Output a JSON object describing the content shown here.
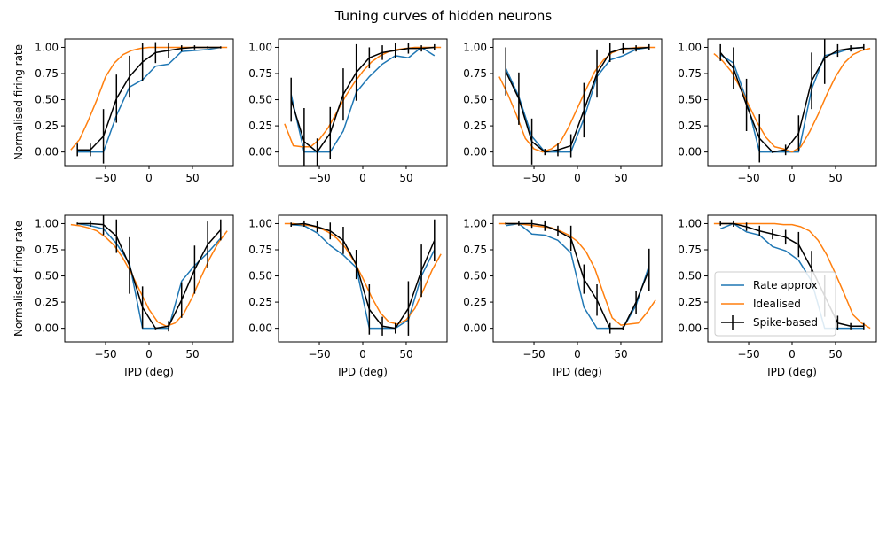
{
  "figure": {
    "title": "Tuning curves of hidden neurons"
  },
  "chart_data": {
    "type": "line",
    "title": "Tuning curves of hidden neurons",
    "xlabel": "IPD (deg)",
    "ylabel": "Normalised firing rate",
    "xlim": [
      -97,
      97
    ],
    "ylim": [
      -0.13,
      1.08
    ],
    "xticks": [
      -50,
      0,
      50
    ],
    "yticks": [
      0.0,
      0.25,
      0.5,
      0.75,
      1.0
    ],
    "xtick_labels": [
      "−50",
      "0",
      "50"
    ],
    "ytick_labels": [
      "0.00",
      "0.25",
      "0.50",
      "0.75",
      "1.00"
    ],
    "grid": false,
    "legend": {
      "placement": "lower-right of last panel",
      "entries": [
        {
          "label": "Rate approx",
          "color": "#1f77b4"
        },
        {
          "label": "Idealised",
          "color": "#ff7f0e"
        },
        {
          "label": "Spike-based",
          "color": "#000000"
        }
      ]
    },
    "series_colors": {
      "rate": "#1f77b4",
      "ideal": "#ff7f0e",
      "spike": "#000000"
    },
    "rate_x": [
      -82.5,
      -67.5,
      -52.5,
      -37.5,
      -22.5,
      -7.5,
      7.5,
      22.5,
      37.5,
      52.5,
      67.5,
      82.5
    ],
    "ideal_x": [
      -90,
      -80,
      -70,
      -60,
      -50,
      -40,
      -30,
      -20,
      -10,
      0,
      10,
      20,
      30,
      40,
      50,
      60,
      70,
      80,
      90
    ],
    "spike_x": [
      -82.5,
      -67.5,
      -52.5,
      -37.5,
      -22.5,
      -7.5,
      7.5,
      22.5,
      37.5,
      52.5,
      67.5,
      82.5
    ],
    "panels": [
      {
        "rate": [
          0.0,
          0.0,
          0.0,
          0.35,
          0.62,
          0.69,
          0.82,
          0.84,
          0.96,
          0.97,
          0.98,
          1.0
        ],
        "ideal": [
          0.02,
          0.12,
          0.3,
          0.5,
          0.72,
          0.85,
          0.93,
          0.97,
          0.99,
          1.0,
          1.0,
          1.0,
          1.0,
          1.0,
          1.0,
          1.0,
          1.0,
          1.0,
          1.0
        ],
        "spike": [
          0.02,
          0.02,
          0.15,
          0.51,
          0.72,
          0.86,
          0.95,
          0.97,
          0.99,
          1.0,
          1.0,
          1.0
        ],
        "spike_err": [
          0.06,
          0.06,
          0.26,
          0.23,
          0.2,
          0.18,
          0.1,
          0.07,
          0.03,
          0.02,
          0.01,
          0.01
        ]
      },
      {
        "rate": [
          0.55,
          0.0,
          0.0,
          0.0,
          0.2,
          0.57,
          0.72,
          0.84,
          0.92,
          0.9,
          1.0,
          0.92
        ],
        "ideal": [
          0.27,
          0.06,
          0.05,
          0.05,
          0.12,
          0.23,
          0.38,
          0.53,
          0.66,
          0.77,
          0.86,
          0.92,
          0.96,
          0.98,
          0.99,
          1.0,
          1.0,
          1.0,
          1.0
        ],
        "spike": [
          0.5,
          0.1,
          0.0,
          0.18,
          0.55,
          0.76,
          0.9,
          0.95,
          0.97,
          0.99,
          0.99,
          1.0
        ],
        "spike_err": [
          0.21,
          0.32,
          0.13,
          0.25,
          0.25,
          0.27,
          0.1,
          0.07,
          0.07,
          0.05,
          0.03,
          0.03
        ]
      },
      {
        "rate": [
          0.8,
          0.53,
          0.15,
          0.0,
          0.0,
          0.0,
          0.32,
          0.72,
          0.88,
          0.92,
          0.98,
          1.0
        ],
        "ideal": [
          0.72,
          0.55,
          0.35,
          0.13,
          0.03,
          0.0,
          0.03,
          0.09,
          0.24,
          0.42,
          0.6,
          0.77,
          0.88,
          0.95,
          0.98,
          0.99,
          1.0,
          1.0,
          1.0
        ],
        "spike": [
          0.77,
          0.51,
          0.1,
          0.0,
          0.02,
          0.06,
          0.4,
          0.75,
          0.95,
          0.99,
          0.99,
          1.0
        ],
        "spike_err": [
          0.23,
          0.25,
          0.22,
          0.03,
          0.06,
          0.11,
          0.26,
          0.23,
          0.09,
          0.05,
          0.03,
          0.03
        ]
      },
      {
        "rate": [
          0.93,
          0.85,
          0.5,
          0.0,
          0.0,
          0.0,
          0.0,
          0.6,
          0.92,
          0.95,
          0.99,
          1.0
        ],
        "ideal": [
          0.94,
          0.87,
          0.77,
          0.62,
          0.45,
          0.28,
          0.14,
          0.05,
          0.03,
          0.0,
          0.05,
          0.19,
          0.36,
          0.55,
          0.72,
          0.85,
          0.93,
          0.97,
          0.99
        ],
        "spike": [
          0.95,
          0.8,
          0.45,
          0.13,
          0.0,
          0.02,
          0.18,
          0.68,
          0.9,
          0.97,
          0.99,
          1.0
        ],
        "spike_err": [
          0.08,
          0.2,
          0.25,
          0.23,
          0.01,
          0.05,
          0.17,
          0.27,
          0.25,
          0.06,
          0.03,
          0.03
        ]
      },
      {
        "rate": [
          1.0,
          0.98,
          0.95,
          0.81,
          0.62,
          0.0,
          0.0,
          0.0,
          0.45,
          0.6,
          0.72,
          0.86
        ],
        "ideal": [
          0.99,
          0.98,
          0.96,
          0.93,
          0.87,
          0.79,
          0.67,
          0.52,
          0.35,
          0.18,
          0.06,
          0.02,
          0.05,
          0.14,
          0.3,
          0.49,
          0.67,
          0.82,
          0.93
        ],
        "spike": [
          1.0,
          1.0,
          0.99,
          0.88,
          0.6,
          0.2,
          0.0,
          0.02,
          0.27,
          0.56,
          0.8,
          0.94
        ],
        "spike_err": [
          0.01,
          0.03,
          0.1,
          0.16,
          0.27,
          0.2,
          0.01,
          0.05,
          0.17,
          0.23,
          0.22,
          0.1
        ]
      },
      {
        "rate": [
          0.99,
          0.98,
          0.91,
          0.79,
          0.7,
          0.58,
          0.0,
          0.0,
          0.0,
          0.08,
          0.5,
          0.75
        ],
        "ideal": [
          1.0,
          1.0,
          0.99,
          0.98,
          0.96,
          0.92,
          0.86,
          0.77,
          0.64,
          0.48,
          0.3,
          0.15,
          0.06,
          0.04,
          0.08,
          0.19,
          0.37,
          0.56,
          0.71
        ],
        "spike": [
          0.99,
          1.0,
          0.97,
          0.93,
          0.84,
          0.61,
          0.18,
          0.02,
          0.0,
          0.19,
          0.55,
          0.84
        ],
        "spike_err": [
          0.02,
          0.03,
          0.05,
          0.08,
          0.13,
          0.14,
          0.24,
          0.09,
          0.05,
          0.26,
          0.25,
          0.2
        ]
      },
      {
        "rate": [
          0.98,
          1.0,
          0.9,
          0.89,
          0.84,
          0.72,
          0.2,
          0.0,
          0.0,
          0.0,
          0.22,
          0.6
        ],
        "ideal": [
          1.0,
          1.0,
          1.0,
          0.99,
          0.98,
          0.97,
          0.96,
          0.93,
          0.89,
          0.83,
          0.73,
          0.57,
          0.33,
          0.1,
          0.03,
          0.04,
          0.05,
          0.15,
          0.27
        ],
        "spike": [
          1.0,
          1.0,
          1.0,
          0.98,
          0.93,
          0.86,
          0.47,
          0.27,
          0.0,
          0.0,
          0.25,
          0.56
        ],
        "spike_err": [
          0.01,
          0.02,
          0.04,
          0.05,
          0.05,
          0.12,
          0.14,
          0.15,
          0.05,
          0.02,
          0.11,
          0.2
        ]
      },
      {
        "rate": [
          0.95,
          1.0,
          0.92,
          0.89,
          0.78,
          0.74,
          0.65,
          0.45,
          0.0,
          0.0,
          0.0,
          0.0
        ],
        "ideal": [
          1.0,
          1.0,
          1.0,
          1.0,
          1.0,
          1.0,
          1.0,
          1.0,
          0.99,
          0.99,
          0.97,
          0.93,
          0.84,
          0.7,
          0.52,
          0.33,
          0.13,
          0.05,
          0.0
        ],
        "spike": [
          1.0,
          1.0,
          0.97,
          0.93,
          0.9,
          0.87,
          0.8,
          0.57,
          0.31,
          0.05,
          0.02,
          0.02
        ],
        "spike_err": [
          0.02,
          0.03,
          0.04,
          0.05,
          0.05,
          0.07,
          0.12,
          0.17,
          0.2,
          0.07,
          0.03,
          0.03
        ]
      }
    ]
  }
}
